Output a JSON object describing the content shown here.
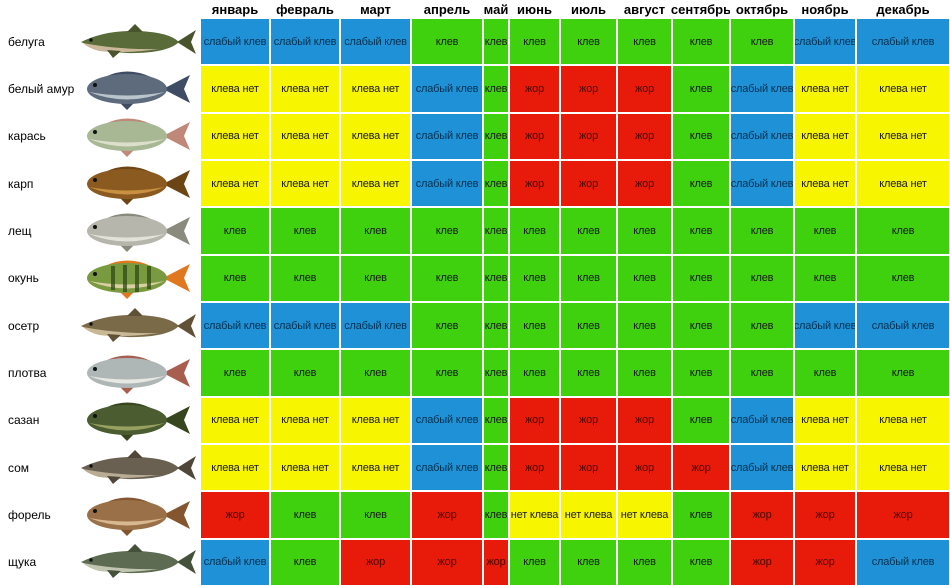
{
  "months": [
    "январь",
    "февраль",
    "март",
    "апрель",
    "май",
    "июнь",
    "июль",
    "август",
    "сентябрь",
    "октябрь",
    "ноябрь",
    "декабрь"
  ],
  "cell_colors": {
    "клев": "#3FD00E",
    "слабый клев": "#1E91D7",
    "клева нет": "#F8F500",
    "нет клева": "#F8F500",
    "жор": "#E81A0A"
  },
  "cell_states": {
    "клев": "bite",
    "слабый клев": "weak",
    "клева нет": "none",
    "нет клева": "none",
    "жор": "frenzy"
  },
  "fish": [
    {
      "name": "белуга",
      "icon": "beluga-fish-icon",
      "shape": "long",
      "colors": {
        "body": "#5a6b3a",
        "belly": "#cbb89a",
        "fins": "#49542c"
      },
      "cells": [
        "слабый клев",
        "слабый клев",
        "слабый клев",
        "клев",
        "клев",
        "клев",
        "клев",
        "клев",
        "клев",
        "клев",
        "слабый клев",
        "слабый клев"
      ]
    },
    {
      "name": "белый амур",
      "icon": "grass-carp-fish-icon",
      "shape": "normal",
      "colors": {
        "body": "#5d6b7d",
        "belly": "#b9c4cc",
        "fins": "#3f4c63"
      },
      "cells": [
        "клева нет",
        "клева нет",
        "клева нет",
        "слабый клев",
        "клев",
        "жор",
        "жор",
        "жор",
        "клев",
        "слабый клев",
        "клева нет",
        "клева нет"
      ]
    },
    {
      "name": "карась",
      "icon": "crucian-carp-fish-icon",
      "shape": "normal",
      "colors": {
        "body": "#a8b894",
        "belly": "#dcdfcb",
        "fins": "#c08878"
      },
      "cells": [
        "клева нет",
        "клева нет",
        "клева нет",
        "слабый клев",
        "клев",
        "жор",
        "жор",
        "жор",
        "клев",
        "слабый клев",
        "клева нет",
        "клева нет"
      ]
    },
    {
      "name": "карп",
      "icon": "carp-fish-icon",
      "shape": "normal",
      "colors": {
        "body": "#8a5a20",
        "belly": "#c89040",
        "fins": "#6d4414"
      },
      "cells": [
        "клева нет",
        "клева нет",
        "клева нет",
        "слабый клев",
        "клев",
        "жор",
        "жор",
        "жор",
        "клев",
        "слабый клев",
        "клева нет",
        "клева нет"
      ]
    },
    {
      "name": "лещ",
      "icon": "bream-fish-icon",
      "shape": "normal",
      "colors": {
        "body": "#b6b6ac",
        "belly": "#e2e2d8",
        "fins": "#8a8a7e"
      },
      "cells": [
        "клев",
        "клев",
        "клев",
        "клев",
        "клев",
        "клев",
        "клев",
        "клев",
        "клев",
        "клев",
        "клев",
        "клев"
      ]
    },
    {
      "name": "окунь",
      "icon": "perch-fish-icon",
      "shape": "perch",
      "colors": {
        "body": "#7a9a40",
        "belly": "#d8d0a0",
        "fins": "#e07820"
      },
      "cells": [
        "клев",
        "клев",
        "клев",
        "клев",
        "клев",
        "клев",
        "клев",
        "клев",
        "клев",
        "клев",
        "клев",
        "клев"
      ]
    },
    {
      "name": "осетр",
      "icon": "sturgeon-fish-icon",
      "shape": "long",
      "colors": {
        "body": "#7a6a48",
        "belly": "#c8b896",
        "fins": "#5f5236"
      },
      "cells": [
        "слабый клев",
        "слабый клев",
        "слабый клев",
        "клев",
        "клев",
        "клев",
        "клев",
        "клев",
        "клев",
        "клев",
        "слабый клев",
        "слабый клев"
      ]
    },
    {
      "name": "плотва",
      "icon": "roach-fish-icon",
      "shape": "normal",
      "colors": {
        "body": "#aeb6b6",
        "belly": "#e8e8e2",
        "fins": "#a85e4e"
      },
      "cells": [
        "клев",
        "клев",
        "клев",
        "клев",
        "клев",
        "клев",
        "клев",
        "клев",
        "клев",
        "клев",
        "клев",
        "клев"
      ]
    },
    {
      "name": "сазан",
      "icon": "wild-carp-fish-icon",
      "shape": "normal",
      "colors": {
        "body": "#4a5c30",
        "belly": "#98a060",
        "fins": "#37461f"
      },
      "cells": [
        "клева нет",
        "клева нет",
        "клева нет",
        "слабый клев",
        "клев",
        "жор",
        "жор",
        "жор",
        "клев",
        "слабый клев",
        "клева нет",
        "клева нет"
      ]
    },
    {
      "name": "сом",
      "icon": "catfish-fish-icon",
      "shape": "long",
      "colors": {
        "body": "#6a6052",
        "belly": "#b8ac94",
        "fins": "#51463a"
      },
      "cells": [
        "клева нет",
        "клева нет",
        "клева нет",
        "слабый клев",
        "клев",
        "жор",
        "жор",
        "жор",
        "жор",
        "слабый клев",
        "клева нет",
        "клева нет"
      ]
    },
    {
      "name": "форель",
      "icon": "trout-fish-icon",
      "shape": "normal",
      "colors": {
        "body": "#9a7048",
        "belly": "#d8b890",
        "fins": "#84562f"
      },
      "cells": [
        "жор",
        "клев",
        "клев",
        "жор",
        "клев",
        "нет клева",
        "нет клева",
        "нет клева",
        "клев",
        "жор",
        "жор",
        "жор"
      ]
    },
    {
      "name": "щука",
      "icon": "pike-fish-icon",
      "shape": "long",
      "colors": {
        "body": "#5c6b52",
        "belly": "#c0c4b0",
        "fins": "#46513c"
      },
      "cells": [
        "слабый клев",
        "клев",
        "жор",
        "жор",
        "жор",
        "клев",
        "клев",
        "клев",
        "клев",
        "жор",
        "жор",
        "слабый клев"
      ]
    }
  ]
}
